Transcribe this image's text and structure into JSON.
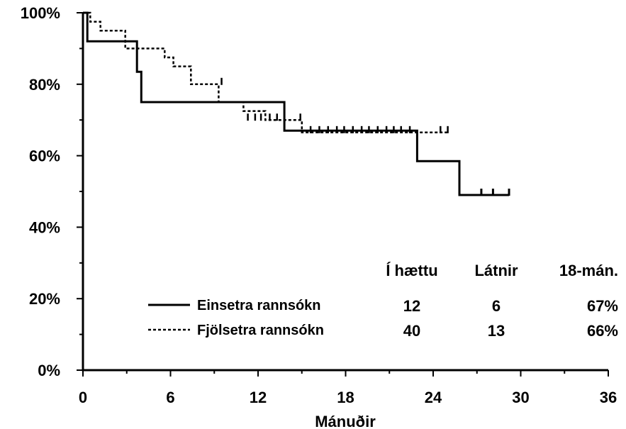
{
  "chart_data": {
    "type": "line",
    "title": "",
    "xlabel": "Mánuðir",
    "ylabel": "",
    "xlim": [
      0,
      36
    ],
    "ylim": [
      0,
      100
    ],
    "x_ticks": [
      "0",
      "6",
      "12",
      "18",
      "24",
      "30",
      "36"
    ],
    "y_ticks": [
      "0%",
      "20%",
      "40%",
      "60%",
      "80%",
      "100%"
    ],
    "grid": false,
    "legend_position": "bottom-left",
    "series": [
      {
        "name": "Einsetra rannsókn",
        "style": "solid",
        "color": "#000000",
        "x": [
          0,
          0.3,
          0.3,
          3.7,
          3.7,
          4.0,
          4.0,
          13.8,
          13.8,
          22.9,
          22.9,
          25.8,
          25.8,
          29.2
        ],
        "y": [
          100,
          100,
          92,
          92,
          83.5,
          83.5,
          75,
          75,
          67,
          67,
          58.5,
          58.5,
          49,
          49
        ],
        "censored": [
          {
            "x": 27.3,
            "y": 49
          },
          {
            "x": 28.1,
            "y": 49
          },
          {
            "x": 29.2,
            "y": 49
          }
        ]
      },
      {
        "name": "Fjölsetra rannsókn",
        "style": "dotted",
        "color": "#000000",
        "x": [
          0,
          0.5,
          0.5,
          1.2,
          1.2,
          2.9,
          2.9,
          3.8,
          3.8,
          5.6,
          5.6,
          6.2,
          6.2,
          7.4,
          7.4,
          9.3,
          9.3,
          11.0,
          11.0,
          12.5,
          12.5,
          15.0,
          15.0,
          25.0
        ],
        "y": [
          100,
          100,
          97.5,
          97.5,
          95,
          95,
          90,
          90,
          90,
          90,
          87.5,
          87.5,
          85,
          85,
          80,
          80,
          75,
          75,
          72.5,
          72.5,
          70,
          70,
          66.5,
          66.5
        ],
        "censored": [
          {
            "x": 9.5,
            "y": 80
          },
          {
            "x": 11.3,
            "y": 70
          },
          {
            "x": 11.8,
            "y": 70
          },
          {
            "x": 12.2,
            "y": 70
          },
          {
            "x": 12.8,
            "y": 70
          },
          {
            "x": 13.3,
            "y": 70
          },
          {
            "x": 14.9,
            "y": 70
          },
          {
            "x": 15.6,
            "y": 66.5
          },
          {
            "x": 16.2,
            "y": 66.5
          },
          {
            "x": 16.8,
            "y": 66.5
          },
          {
            "x": 17.4,
            "y": 66.5
          },
          {
            "x": 17.9,
            "y": 66.5
          },
          {
            "x": 18.5,
            "y": 66.5
          },
          {
            "x": 19.1,
            "y": 66.5
          },
          {
            "x": 19.6,
            "y": 66.5
          },
          {
            "x": 20.2,
            "y": 66.5
          },
          {
            "x": 20.8,
            "y": 66.5
          },
          {
            "x": 21.3,
            "y": 66.5
          },
          {
            "x": 21.8,
            "y": 66.5
          },
          {
            "x": 22.4,
            "y": 66.5
          },
          {
            "x": 24.5,
            "y": 66.5
          },
          {
            "x": 25.0,
            "y": 66.5
          }
        ]
      }
    ],
    "risk_table": {
      "headers": [
        "Í hættu",
        "Látnir",
        "18-mán."
      ],
      "rows": [
        {
          "label": "Einsetra rannsókn",
          "values": [
            "12",
            "6",
            "67%"
          ]
        },
        {
          "label": "Fjölsetra rannsókn",
          "values": [
            "40",
            "13",
            "66%"
          ]
        }
      ]
    }
  }
}
